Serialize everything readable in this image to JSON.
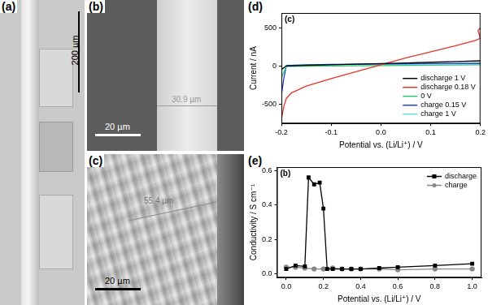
{
  "panels": [
    {
      "label": "(a)",
      "scale_bar": "200 µm"
    },
    {
      "label": "(b)",
      "measurement": "30.9 µm",
      "scale_bar": "20 µm"
    },
    {
      "label": "(c)",
      "measurement": "55.4 µm",
      "scale_bar": "20 µm"
    }
  ],
  "chart_data": [
    {
      "type": "line",
      "panel_label": "(d)",
      "annotation": "(c)",
      "x_label": "Potential vs. (Li/Li⁺) / V",
      "y_label": "Current / nA",
      "xlim": [
        -0.2,
        0.2
      ],
      "xticks": [
        -0.2,
        -0.1,
        {
          "value": 0,
          "label": "0.0"
        },
        0.1,
        0.2
      ],
      "ylim": [
        -750,
        700
      ],
      "yticks": [
        -500,
        0,
        500
      ],
      "grid": false,
      "legend": "lower right",
      "series": [
        {
          "name": "discharge 1 V",
          "color": "#000000",
          "x": [
            -0.2,
            -0.19,
            -0.15,
            -0.1,
            -0.05,
            0,
            0.05,
            0.1,
            0.15,
            0.2
          ],
          "values": [
            -40,
            5,
            12,
            20,
            28,
            35,
            45,
            53,
            62,
            72
          ]
        },
        {
          "name": "discharge 0.18 V",
          "color": "#e8332a",
          "x": [
            -0.2,
            -0.195,
            -0.19,
            -0.18,
            -0.15,
            -0.1,
            -0.05,
            0,
            0.05,
            0.1,
            0.15,
            0.19,
            0.2,
            0.195,
            0.2
          ],
          "values": [
            -700,
            -520,
            -420,
            -350,
            -260,
            -160,
            -70,
            20,
            110,
            190,
            270,
            340,
            370,
            470,
            510
          ]
        },
        {
          "name": "0 V",
          "color": "#2ecc71",
          "x": [
            -0.2,
            -0.19,
            -0.1,
            0,
            0.1,
            0.2
          ],
          "values": [
            -150,
            0,
            5,
            10,
            15,
            20
          ]
        },
        {
          "name": "charge 0.15 V",
          "color": "#1a3fd1",
          "x": [
            -0.2,
            -0.195,
            -0.19,
            -0.15,
            -0.1,
            0,
            0.1,
            0.2
          ],
          "values": [
            -380,
            -150,
            10,
            20,
            25,
            30,
            35,
            40
          ]
        },
        {
          "name": "charge 1 V",
          "color": "#66e0d0",
          "x": [
            -0.2,
            -0.19,
            -0.1,
            0,
            0.1,
            0.2
          ],
          "values": [
            -60,
            15,
            20,
            25,
            30,
            35
          ]
        }
      ]
    },
    {
      "type": "line",
      "panel_label": "(e)",
      "annotation": "(b)",
      "x_label": "Potential vs. (Li/Li⁺) / V",
      "y_label": "Conductivity / S cm⁻¹",
      "xlim": [
        -0.05,
        1.05
      ],
      "xticks": [
        {
          "value": 0,
          "label": "0.0"
        },
        0.2,
        0.4,
        0.6,
        0.8,
        {
          "value": 1,
          "label": "1.0"
        }
      ],
      "ylim": [
        -0.02,
        0.62
      ],
      "yticks": [
        {
          "value": 0,
          "label": "0.0"
        },
        0.2,
        0.4,
        0.6
      ],
      "grid": false,
      "legend": "upper right",
      "series": [
        {
          "name": "discharge",
          "color": "#000000",
          "marker": "square",
          "x": [
            0,
            0.05,
            0.1,
            0.12,
            0.15,
            0.18,
            0.2,
            0.22,
            0.25,
            0.3,
            0.35,
            0.4,
            0.5,
            0.6,
            0.8,
            1.0
          ],
          "values": [
            0.03,
            0.05,
            0.045,
            0.56,
            0.52,
            0.53,
            0.38,
            0.03,
            0.03,
            0.03,
            0.03,
            0.03,
            0.035,
            0.04,
            0.05,
            0.06
          ]
        },
        {
          "name": "charge",
          "color": "#888888",
          "marker": "circle",
          "x": [
            0,
            0.05,
            0.1,
            0.15,
            0.2,
            0.25,
            0.3,
            0.35,
            0.4,
            0.5,
            0.6,
            0.8,
            1.0
          ],
          "values": [
            0.04,
            0.04,
            0.035,
            0.03,
            0.03,
            0.035,
            0.03,
            0.03,
            0.03,
            0.03,
            0.025,
            0.03,
            0.03
          ]
        }
      ]
    }
  ]
}
